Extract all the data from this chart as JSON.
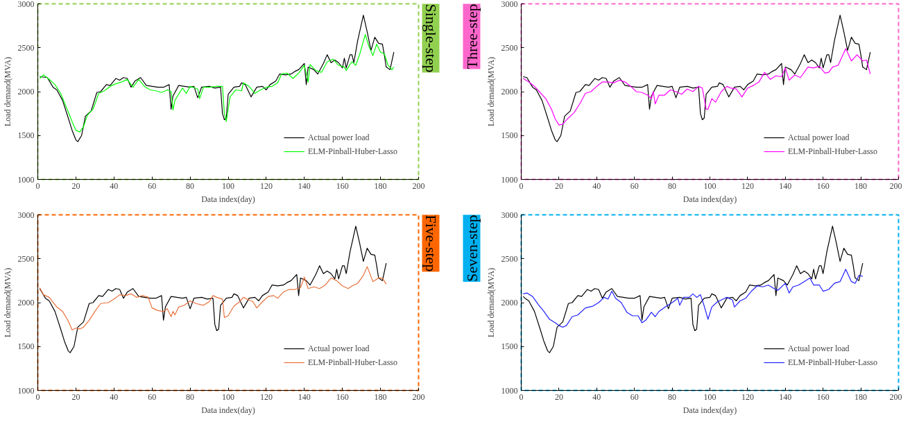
{
  "chart_data": [
    {
      "type": "line",
      "title": "Single-step",
      "xlabel": "Data index(day)",
      "ylabel": "Load demand(MVA)",
      "xlim": [
        0,
        200
      ],
      "ylim": [
        1000,
        3000
      ],
      "xticks": [
        0,
        20,
        40,
        60,
        80,
        100,
        120,
        140,
        160,
        180,
        200
      ],
      "yticks": [
        1000,
        1500,
        2000,
        2500,
        3000
      ],
      "legend": "bottom right",
      "series": [
        {
          "name": "Actual power load",
          "color": "#000000",
          "x": [
            1,
            5,
            8,
            10,
            13,
            16,
            18,
            20,
            21,
            23,
            25,
            28,
            31,
            33,
            36,
            38,
            41,
            43,
            45,
            47,
            49,
            51,
            54,
            57,
            60,
            63,
            66,
            69,
            70,
            71,
            74,
            77,
            80,
            82,
            84,
            86,
            90,
            93,
            96,
            97,
            98,
            99,
            100,
            103,
            106,
            107,
            109,
            112,
            115,
            118,
            120,
            122,
            125,
            127,
            130,
            133,
            135,
            137,
            140,
            141,
            142,
            145,
            147,
            150,
            152,
            154,
            156,
            158,
            160,
            161,
            162,
            164,
            165,
            166,
            168,
            171,
            173,
            175,
            177,
            179,
            181,
            182,
            183,
            185,
            187
          ],
          "values": [
            2170,
            2160,
            2050,
            2020,
            1900,
            1700,
            1560,
            1450,
            1430,
            1500,
            1720,
            1780,
            1990,
            2000,
            2080,
            2070,
            2150,
            2130,
            2160,
            2150,
            2050,
            2120,
            2160,
            2070,
            2060,
            2050,
            2050,
            2080,
            1800,
            1950,
            2070,
            2060,
            2050,
            2060,
            1930,
            2050,
            2060,
            2040,
            2050,
            1750,
            1680,
            1700,
            1970,
            2050,
            2060,
            2100,
            2080,
            1940,
            2050,
            2060,
            2020,
            2080,
            2120,
            2200,
            2190,
            2200,
            2230,
            2250,
            2320,
            2080,
            2280,
            2250,
            2200,
            2320,
            2420,
            2330,
            2360,
            2330,
            2270,
            2380,
            2270,
            2420,
            2420,
            2330,
            2580,
            2870,
            2680,
            2470,
            2620,
            2550,
            2540,
            2420,
            2280,
            2250,
            2450
          ]
        },
        {
          "name": "ELM-Pinball-Huber-Lasso",
          "color": "#00ff00",
          "x": [
            1,
            3,
            6,
            9,
            12,
            15,
            18,
            20,
            22,
            24,
            26,
            29,
            32,
            35,
            38,
            41,
            44,
            47,
            50,
            53,
            56,
            59,
            62,
            65,
            68,
            70,
            71,
            72,
            76,
            78,
            80,
            84,
            85,
            87,
            90,
            94,
            97,
            98,
            99,
            101,
            104,
            107,
            108,
            111,
            114,
            117,
            120,
            123,
            126,
            128,
            131,
            134,
            137,
            140,
            142,
            143,
            146,
            149,
            152,
            155,
            158,
            161,
            162,
            164,
            165,
            167,
            169,
            172,
            174,
            176,
            178,
            180,
            182,
            184,
            186,
            187
          ],
          "values": [
            2150,
            2190,
            2140,
            2080,
            1980,
            1820,
            1660,
            1560,
            1540,
            1600,
            1730,
            1800,
            1980,
            2010,
            2060,
            2090,
            2110,
            2140,
            2050,
            2140,
            2060,
            2020,
            2010,
            1990,
            2020,
            2000,
            1790,
            1900,
            2040,
            1980,
            2060,
            2030,
            1920,
            2050,
            2050,
            2060,
            2060,
            1750,
            1660,
            1940,
            2020,
            2010,
            2100,
            2060,
            1980,
            2020,
            2050,
            2060,
            2100,
            2200,
            2210,
            2150,
            2210,
            2300,
            2110,
            2310,
            2240,
            2220,
            2340,
            2370,
            2300,
            2280,
            2240,
            2310,
            2340,
            2300,
            2420,
            2650,
            2510,
            2410,
            2540,
            2450,
            2430,
            2300,
            2250,
            2280
          ]
        }
      ]
    },
    {
      "type": "line",
      "title": "Three-step",
      "xlabel": "Data index(day)",
      "ylabel": "Load demand(MVA)",
      "xlim": [
        0,
        200
      ],
      "ylim": [
        1000,
        3000
      ],
      "xticks": [
        0,
        20,
        40,
        60,
        80,
        100,
        120,
        140,
        160,
        180,
        200
      ],
      "yticks": [
        1000,
        1500,
        2000,
        2500,
        3000
      ],
      "legend": "bottom right",
      "series": [
        {
          "name": "Actual power load",
          "color": "#000000",
          "x": [
            1,
            3,
            6,
            8,
            11,
            14,
            16,
            18,
            19,
            21,
            23,
            26,
            29,
            31,
            34,
            36,
            39,
            41,
            43,
            45,
            47,
            49,
            52,
            55,
            58,
            61,
            64,
            67,
            68,
            69,
            72,
            75,
            78,
            80,
            82,
            84,
            88,
            91,
            94,
            95,
            96,
            97,
            98,
            101,
            104,
            105,
            107,
            110,
            113,
            116,
            118,
            120,
            123,
            125,
            128,
            131,
            133,
            135,
            138,
            139,
            140,
            143,
            145,
            148,
            150,
            152,
            154,
            156,
            158,
            159,
            160,
            162,
            163,
            164,
            166,
            169,
            171,
            173,
            175,
            177,
            179,
            180,
            181,
            183,
            185
          ],
          "values": [
            2170,
            2160,
            2050,
            2020,
            1900,
            1700,
            1560,
            1450,
            1430,
            1500,
            1720,
            1780,
            1990,
            2000,
            2080,
            2070,
            2150,
            2130,
            2160,
            2150,
            2050,
            2120,
            2160,
            2070,
            2060,
            2050,
            2050,
            2080,
            1800,
            1950,
            2070,
            2060,
            2050,
            2060,
            1930,
            2050,
            2060,
            2040,
            2050,
            1750,
            1680,
            1700,
            1970,
            2050,
            2060,
            2100,
            2080,
            1940,
            2050,
            2060,
            2020,
            2080,
            2120,
            2200,
            2190,
            2200,
            2230,
            2250,
            2320,
            2080,
            2280,
            2250,
            2200,
            2320,
            2420,
            2330,
            2360,
            2330,
            2270,
            2380,
            2270,
            2420,
            2420,
            2330,
            2580,
            2870,
            2680,
            2470,
            2620,
            2550,
            2540,
            2420,
            2280,
            2250,
            2450
          ]
        },
        {
          "name": "ELM-Pinball-Huber-Lasso",
          "color": "#ff00ff",
          "x": [
            1,
            4,
            7,
            10,
            13,
            16,
            18,
            20,
            22,
            25,
            28,
            31,
            34,
            37,
            40,
            43,
            46,
            49,
            52,
            55,
            58,
            61,
            64,
            67,
            69,
            70,
            71,
            73,
            76,
            79,
            82,
            85,
            88,
            91,
            94,
            96,
            98,
            99,
            101,
            103,
            106,
            109,
            111,
            114,
            117,
            120,
            123,
            126,
            129,
            132,
            135,
            138,
            140,
            142,
            145,
            148,
            152,
            155,
            158,
            161,
            163,
            165,
            168,
            172,
            175,
            178,
            181,
            183,
            185
          ],
          "values": [
            2150,
            2110,
            2060,
            1990,
            1920,
            1800,
            1690,
            1620,
            1630,
            1700,
            1760,
            1860,
            1980,
            2000,
            2060,
            2110,
            2110,
            2100,
            2130,
            2110,
            2060,
            2000,
            1990,
            1960,
            1920,
            2000,
            1860,
            1960,
            1960,
            2020,
            2000,
            1970,
            2030,
            2000,
            2060,
            2040,
            1800,
            1800,
            1920,
            1880,
            2000,
            2060,
            2040,
            2030,
            1940,
            2040,
            2070,
            2110,
            2220,
            2140,
            2180,
            2170,
            2270,
            2130,
            2190,
            2160,
            2280,
            2270,
            2290,
            2210,
            2220,
            2280,
            2300,
            2490,
            2350,
            2420,
            2350,
            2360,
            2200
          ]
        }
      ]
    },
    {
      "type": "line",
      "title": "Five-step",
      "xlabel": "Data index(day)",
      "ylabel": "Load demand(MVA)",
      "xlim": [
        0,
        200
      ],
      "ylim": [
        1000,
        3000
      ],
      "xticks": [
        0,
        20,
        40,
        60,
        80,
        100,
        120,
        140,
        160,
        180,
        200
      ],
      "yticks": [
        1000,
        1500,
        2000,
        2500,
        3000
      ],
      "legend": "bottom right",
      "series": [
        {
          "name": "Actual power load",
          "color": "#000000",
          "x": [
            1,
            4,
            6,
            9,
            12,
            14,
            16,
            17,
            19,
            21,
            24,
            27,
            29,
            32,
            34,
            37,
            39,
            41,
            43,
            45,
            47,
            50,
            53,
            56,
            59,
            62,
            65,
            66,
            67,
            70,
            73,
            76,
            78,
            80,
            82,
            86,
            89,
            92,
            93,
            94,
            95,
            96,
            99,
            102,
            103,
            105,
            108,
            111,
            114,
            116,
            118,
            121,
            123,
            126,
            129,
            131,
            133,
            136,
            137,
            138,
            141,
            143,
            146,
            148,
            150,
            152,
            154,
            156,
            157,
            158,
            160,
            161,
            162,
            164,
            167,
            169,
            171,
            173,
            175,
            177,
            178,
            179,
            181,
            183
          ],
          "values": [
            2160,
            2050,
            2020,
            1900,
            1700,
            1560,
            1450,
            1430,
            1500,
            1720,
            1780,
            1990,
            2000,
            2080,
            2070,
            2150,
            2130,
            2160,
            2150,
            2050,
            2120,
            2160,
            2070,
            2060,
            2050,
            2050,
            2080,
            1800,
            1950,
            2070,
            2060,
            2050,
            2060,
            1930,
            2050,
            2060,
            2040,
            2050,
            1750,
            1680,
            1700,
            1970,
            2050,
            2060,
            2100,
            2080,
            1940,
            2050,
            2060,
            2020,
            2080,
            2120,
            2200,
            2190,
            2200,
            2230,
            2250,
            2320,
            2080,
            2280,
            2250,
            2200,
            2320,
            2420,
            2330,
            2360,
            2330,
            2270,
            2380,
            2270,
            2420,
            2420,
            2330,
            2580,
            2870,
            2680,
            2470,
            2620,
            2550,
            2540,
            2420,
            2280,
            2250,
            2450
          ]
        },
        {
          "name": "ELM-Pinball-Huber-Lasso",
          "color": "#e8703a",
          "x": [
            1,
            3,
            6,
            10,
            13,
            16,
            18,
            20,
            22,
            24,
            27,
            30,
            33,
            37,
            40,
            43,
            46,
            49,
            52,
            55,
            58,
            60,
            63,
            66,
            68,
            70,
            71,
            72,
            74,
            77,
            80,
            83,
            87,
            90,
            92,
            94,
            97,
            98,
            100,
            103,
            106,
            108,
            110,
            113,
            115,
            118,
            121,
            124,
            126,
            129,
            132,
            135,
            138,
            140,
            142,
            145,
            148,
            151,
            154,
            157,
            160,
            163,
            165,
            168,
            171,
            173,
            176,
            179,
            181,
            183
          ],
          "values": [
            2170,
            2090,
            2060,
            1950,
            1900,
            1790,
            1690,
            1710,
            1700,
            1720,
            1800,
            1900,
            1990,
            2000,
            2040,
            2090,
            2080,
            2100,
            2060,
            2080,
            2060,
            1940,
            1910,
            1900,
            1930,
            1840,
            1900,
            1860,
            1950,
            1970,
            2020,
            1990,
            1970,
            2010,
            2080,
            2060,
            2040,
            1830,
            1850,
            1960,
            2010,
            2060,
            2040,
            2010,
            1940,
            2010,
            2070,
            2080,
            2050,
            2120,
            2150,
            2150,
            2170,
            2290,
            2160,
            2180,
            2160,
            2200,
            2280,
            2250,
            2190,
            2160,
            2190,
            2220,
            2310,
            2410,
            2240,
            2280,
            2280,
            2210
          ]
        }
      ]
    },
    {
      "type": "line",
      "title": "Seven-step",
      "xlabel": "Data index(day)",
      "ylabel": "Load demand(MVA)",
      "xlim": [
        0,
        200
      ],
      "ylim": [
        1000,
        3000
      ],
      "xticks": [
        0,
        20,
        40,
        60,
        80,
        100,
        120,
        140,
        160,
        180,
        200
      ],
      "yticks": [
        1000,
        1500,
        2000,
        2500,
        3000
      ],
      "legend": "bottom right",
      "series": [
        {
          "name": "Actual power load",
          "color": "#000000",
          "x": [
            1,
            2,
            4,
            7,
            10,
            12,
            14,
            15,
            17,
            19,
            22,
            25,
            27,
            30,
            32,
            35,
            37,
            39,
            41,
            43,
            45,
            48,
            51,
            54,
            57,
            60,
            63,
            64,
            65,
            68,
            71,
            74,
            76,
            78,
            80,
            84,
            87,
            90,
            91,
            92,
            93,
            94,
            97,
            100,
            101,
            103,
            106,
            109,
            112,
            114,
            116,
            119,
            121,
            124,
            127,
            129,
            131,
            134,
            135,
            136,
            139,
            141,
            144,
            146,
            148,
            150,
            152,
            154,
            155,
            156,
            158,
            159,
            160,
            162,
            165,
            167,
            169,
            171,
            173,
            175,
            176,
            177,
            179,
            181
          ],
          "values": [
            2070,
            2050,
            2020,
            1900,
            1700,
            1560,
            1450,
            1430,
            1500,
            1720,
            1780,
            1990,
            2000,
            2080,
            2070,
            2150,
            2130,
            2160,
            2150,
            2050,
            2120,
            2160,
            2070,
            2060,
            2050,
            2050,
            2080,
            1800,
            1950,
            2070,
            2060,
            2050,
            2060,
            1930,
            2050,
            2060,
            2040,
            2050,
            1750,
            1680,
            1700,
            1970,
            2050,
            2060,
            2100,
            2080,
            1940,
            2050,
            2060,
            2020,
            2080,
            2120,
            2200,
            2190,
            2200,
            2230,
            2250,
            2320,
            2080,
            2280,
            2250,
            2200,
            2320,
            2420,
            2330,
            2360,
            2330,
            2270,
            2380,
            2270,
            2420,
            2420,
            2330,
            2580,
            2870,
            2680,
            2470,
            2620,
            2550,
            2540,
            2420,
            2280,
            2250,
            2450
          ]
        },
        {
          "name": "ELM-Pinball-Huber-Lasso",
          "color": "#2020ff",
          "x": [
            1,
            3,
            6,
            9,
            12,
            15,
            18,
            20,
            22,
            24,
            27,
            30,
            34,
            38,
            41,
            44,
            46,
            48,
            50,
            53,
            56,
            59,
            62,
            64,
            66,
            69,
            71,
            73,
            77,
            80,
            83,
            84,
            86,
            89,
            91,
            93,
            95,
            97,
            99,
            101,
            104,
            107,
            109,
            112,
            113,
            116,
            119,
            122,
            125,
            128,
            131,
            134,
            136,
            140,
            142,
            144,
            147,
            150,
            153,
            155,
            158,
            160,
            163,
            166,
            169,
            172,
            175,
            177,
            179,
            181
          ],
          "values": [
            2100,
            2110,
            2070,
            1980,
            1900,
            1810,
            1770,
            1740,
            1720,
            1740,
            1840,
            1860,
            1940,
            1960,
            2000,
            2060,
            2040,
            2130,
            2050,
            2000,
            1890,
            1850,
            1850,
            1770,
            1800,
            1890,
            1840,
            1900,
            1960,
            2000,
            2050,
            1970,
            2060,
            2060,
            2100,
            2060,
            2090,
            1960,
            1810,
            1950,
            2010,
            2040,
            2060,
            2030,
            1950,
            2020,
            2050,
            2130,
            2190,
            2180,
            2200,
            2160,
            2140,
            2220,
            2110,
            2180,
            2200,
            2240,
            2280,
            2200,
            2200,
            2130,
            2150,
            2220,
            2240,
            2380,
            2240,
            2220,
            2310,
            2300
          ]
        }
      ]
    }
  ]
}
